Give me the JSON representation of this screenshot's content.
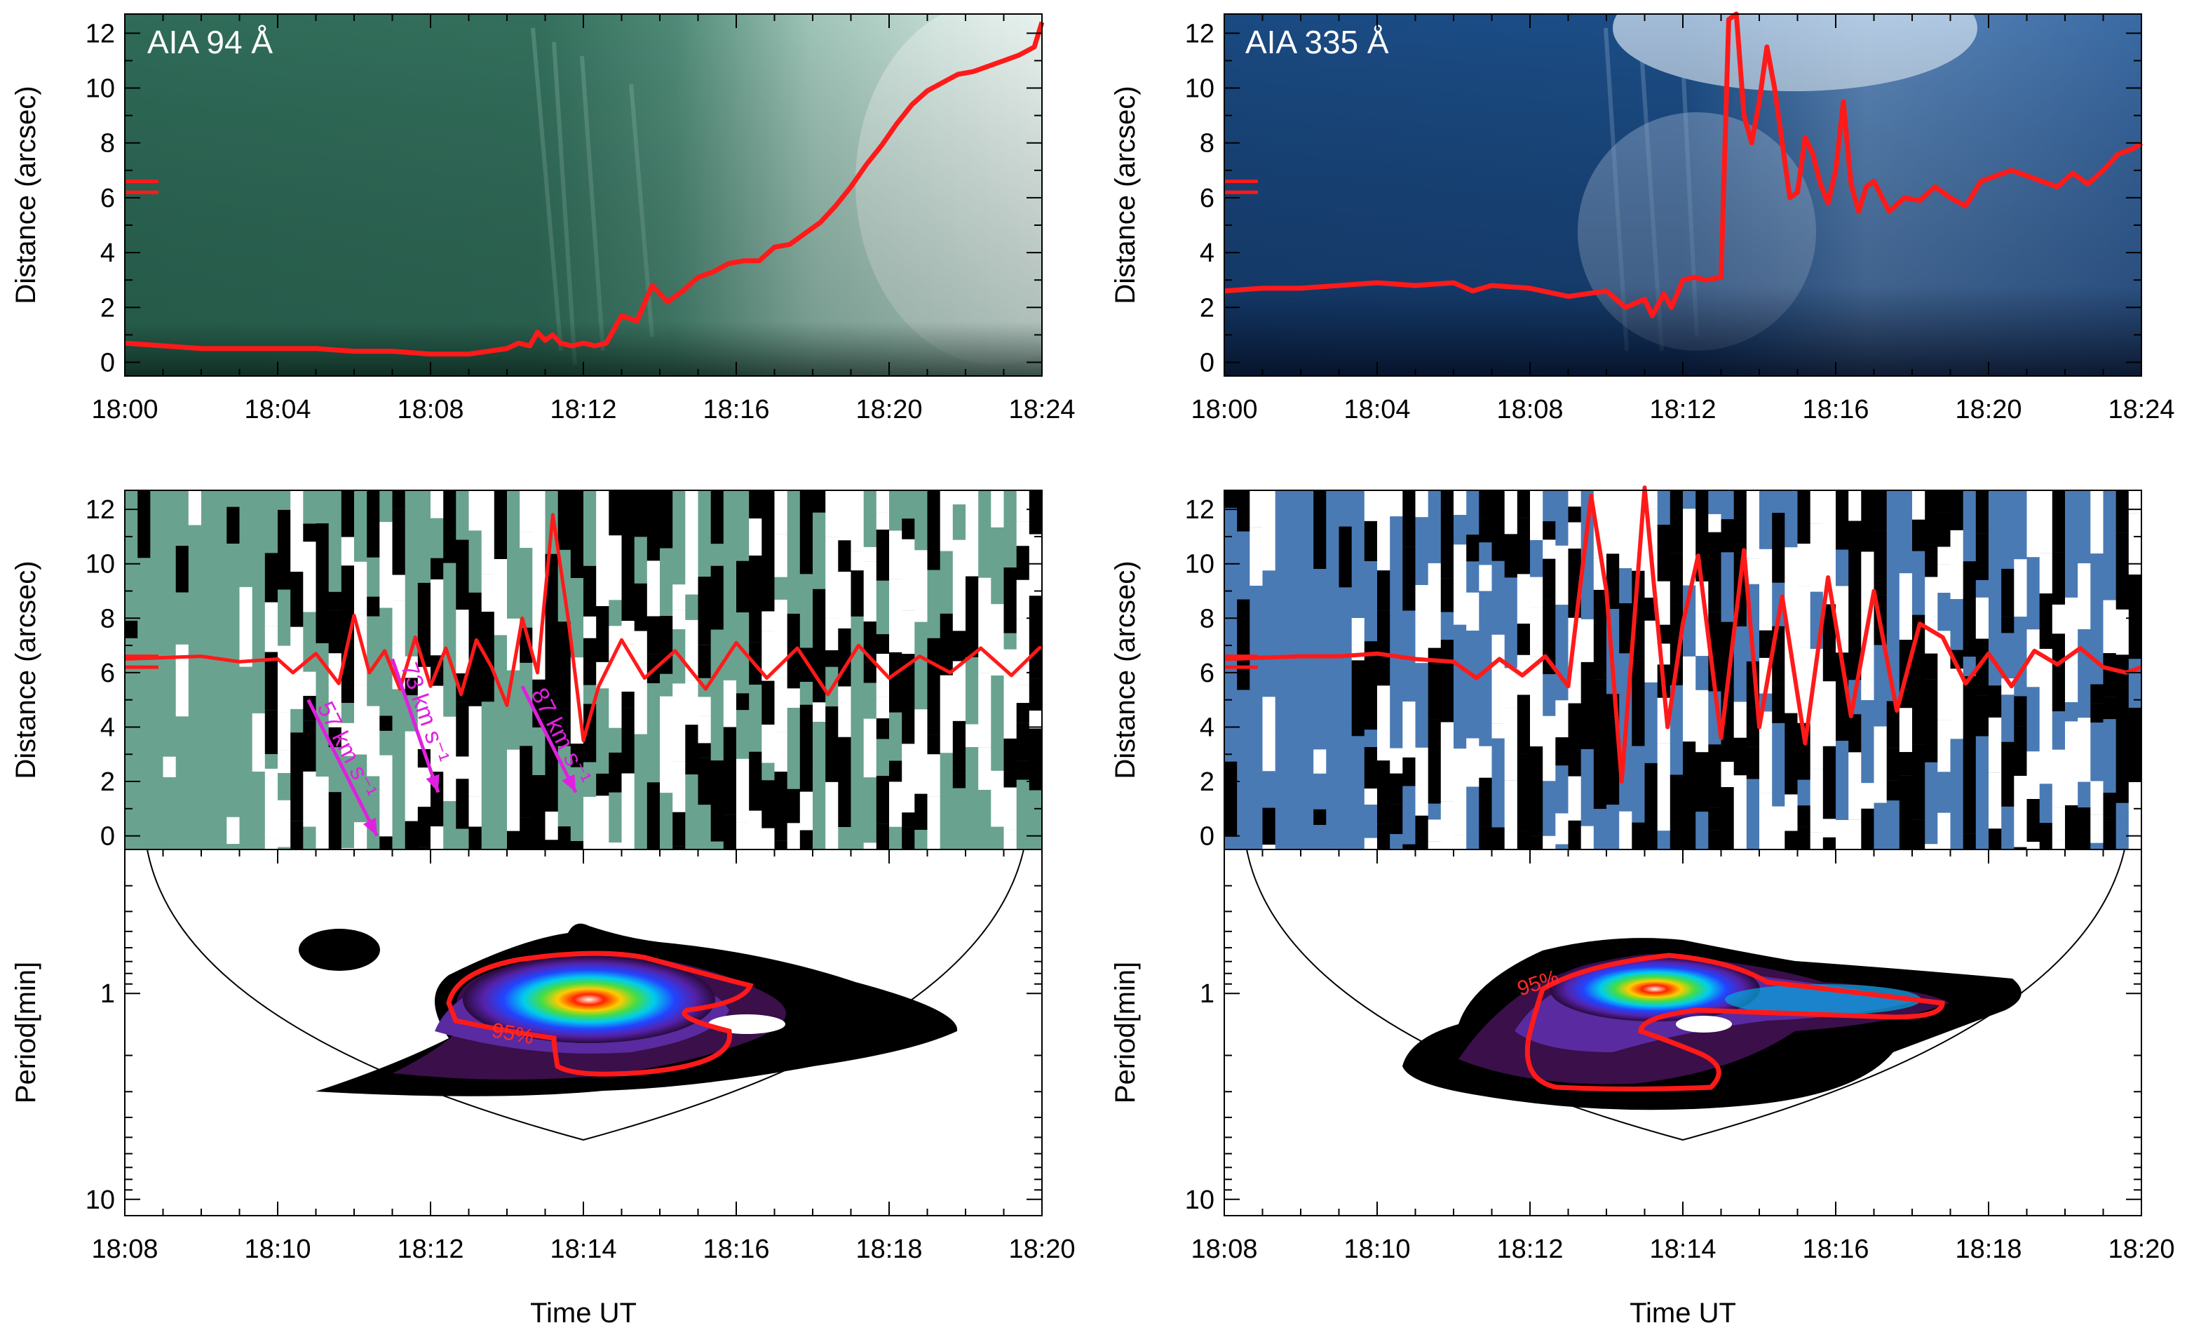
{
  "colors": {
    "aia94_base": "#2f6e5a",
    "aia335_base": "#1d4f86",
    "trace": "#ff1a1a",
    "speed_arrow": "#e020e0",
    "axis": "#000000"
  },
  "chart_data": [
    {
      "id": "ts94",
      "type": "line",
      "title": "AIA 94 Å",
      "xlabel": "",
      "ylabel": "Distance (arcsec)",
      "xticks": [
        "18:00",
        "18:04",
        "18:08",
        "18:12",
        "18:16",
        "18:20",
        "18:24"
      ],
      "xlim": [
        0,
        24
      ],
      "yticks": [
        "0",
        "2",
        "4",
        "6",
        "8",
        "10",
        "12"
      ],
      "ylim": [
        -0.5,
        12.7
      ],
      "x": [
        0,
        1,
        2,
        3,
        4,
        5,
        6,
        7,
        8,
        9,
        9.5,
        10,
        10.3,
        10.6,
        10.8,
        11,
        11.2,
        11.4,
        11.7,
        12,
        12.3,
        12.6,
        13,
        13.4,
        13.8,
        14.2,
        14.6,
        15,
        15.4,
        15.8,
        16.2,
        16.6,
        17,
        17.4,
        17.8,
        18.2,
        18.6,
        19,
        19.4,
        19.8,
        20.2,
        20.6,
        21,
        21.4,
        21.8,
        22.2,
        22.6,
        23,
        23.4,
        23.8,
        24
      ],
      "values": [
        0.7,
        0.6,
        0.5,
        0.5,
        0.5,
        0.5,
        0.4,
        0.4,
        0.3,
        0.3,
        0.4,
        0.5,
        0.7,
        0.6,
        1.1,
        0.8,
        1.0,
        0.7,
        0.6,
        0.7,
        0.6,
        0.7,
        1.7,
        1.5,
        2.8,
        2.2,
        2.6,
        3.1,
        3.3,
        3.6,
        3.7,
        3.7,
        4.2,
        4.3,
        4.7,
        5.1,
        5.7,
        6.4,
        7.2,
        7.9,
        8.7,
        9.4,
        9.9,
        10.2,
        10.5,
        10.6,
        10.8,
        11.0,
        11.2,
        11.5,
        12.4
      ],
      "markers": [
        6.2,
        6.6
      ]
    },
    {
      "id": "ts335",
      "type": "line",
      "title": "AIA 335 Å",
      "xlabel": "",
      "ylabel": "Distance (arcsec)",
      "xticks": [
        "18:00",
        "18:04",
        "18:08",
        "18:12",
        "18:16",
        "18:20",
        "18:24"
      ],
      "xlim": [
        0,
        24
      ],
      "yticks": [
        "0",
        "2",
        "4",
        "6",
        "8",
        "10",
        "12"
      ],
      "ylim": [
        -0.5,
        12.7
      ],
      "x": [
        0,
        1,
        2,
        3,
        4,
        5,
        6,
        6.5,
        7,
        8,
        9,
        10,
        10.5,
        11,
        11.2,
        11.5,
        11.7,
        12,
        12.3,
        12.6,
        13,
        13.2,
        13.4,
        13.6,
        13.8,
        14,
        14.2,
        14.4,
        14.6,
        14.8,
        15,
        15.2,
        15.4,
        15.6,
        15.8,
        16,
        16.2,
        16.4,
        16.6,
        16.8,
        17,
        17.4,
        17.8,
        18.2,
        18.6,
        19,
        19.4,
        19.8,
        20.2,
        20.6,
        21,
        21.4,
        21.8,
        22.2,
        22.6,
        23,
        23.4,
        23.8,
        24
      ],
      "values": [
        2.6,
        2.7,
        2.7,
        2.8,
        2.9,
        2.8,
        2.9,
        2.6,
        2.8,
        2.7,
        2.4,
        2.6,
        2.0,
        2.3,
        1.7,
        2.5,
        2.0,
        3.0,
        3.1,
        3.0,
        3.1,
        12.5,
        12.7,
        9.0,
        8.0,
        9.5,
        11.5,
        10.0,
        8.0,
        6.0,
        6.2,
        8.2,
        7.6,
        6.5,
        5.8,
        7.0,
        9.5,
        6.5,
        5.5,
        6.4,
        6.6,
        5.5,
        6.0,
        5.9,
        6.4,
        6.0,
        5.7,
        6.6,
        6.8,
        7.0,
        6.8,
        6.6,
        6.4,
        6.9,
        6.5,
        7.0,
        7.6,
        7.8,
        8.0
      ],
      "markers": [
        6.2,
        6.6
      ]
    },
    {
      "id": "diff94",
      "type": "line",
      "title": "",
      "xlabel": "",
      "ylabel": "Distance (arcsec)",
      "xlim": [
        0,
        12
      ],
      "yticks": [
        "0",
        "2",
        "4",
        "6",
        "8",
        "10",
        "12"
      ],
      "ylim": [
        -0.5,
        12.7
      ],
      "x": [
        0,
        1,
        1.5,
        2,
        2.2,
        2.5,
        2.8,
        3.0,
        3.2,
        3.4,
        3.6,
        3.8,
        4.0,
        4.2,
        4.4,
        4.6,
        4.8,
        5.0,
        5.2,
        5.4,
        5.6,
        5.8,
        6.0,
        6.2,
        6.5,
        6.8,
        7.2,
        7.6,
        8.0,
        8.4,
        8.8,
        9.2,
        9.6,
        10.0,
        10.4,
        10.8,
        11.2,
        11.6,
        12.0
      ],
      "values": [
        6.5,
        6.6,
        6.4,
        6.5,
        6.0,
        6.7,
        5.6,
        8.1,
        6.0,
        6.8,
        5.4,
        7.3,
        5.5,
        6.9,
        5.2,
        7.2,
        6.2,
        4.8,
        8.0,
        6.0,
        11.8,
        8.0,
        3.5,
        5.5,
        7.2,
        5.8,
        6.8,
        5.4,
        7.1,
        5.8,
        6.9,
        5.2,
        7.0,
        5.8,
        6.6,
        6.0,
        6.9,
        5.9,
        7.0
      ],
      "markers": [
        6.2,
        6.6
      ],
      "speeds": [
        {
          "label": "57 km s⁻¹",
          "x0": 2.4,
          "y0": 5.0,
          "x1": 3.3,
          "y1": 0.0
        },
        {
          "label": "73 km s⁻¹",
          "x0": 3.5,
          "y0": 6.5,
          "x1": 4.1,
          "y1": 1.6
        },
        {
          "label": "87 km s⁻¹",
          "x0": 5.2,
          "y0": 5.5,
          "x1": 5.9,
          "y1": 1.6
        }
      ]
    },
    {
      "id": "diff335",
      "type": "line",
      "title": "",
      "xlabel": "",
      "ylabel": "Distance (arcsec)",
      "xlim": [
        0,
        12
      ],
      "yticks": [
        "0",
        "2",
        "4",
        "6",
        "8",
        "10",
        "12"
      ],
      "ylim": [
        -0.5,
        12.7
      ],
      "x": [
        0,
        1,
        1.5,
        2,
        2.5,
        3.0,
        3.3,
        3.6,
        3.9,
        4.2,
        4.5,
        4.8,
        5.0,
        5.2,
        5.5,
        5.8,
        6.0,
        6.2,
        6.5,
        6.8,
        7.0,
        7.3,
        7.6,
        7.9,
        8.2,
        8.5,
        8.8,
        9.1,
        9.4,
        9.7,
        10.0,
        10.3,
        10.6,
        10.9,
        11.2,
        11.5,
        11.8,
        12.0
      ],
      "values": [
        6.5,
        6.6,
        6.6,
        6.7,
        6.5,
        6.4,
        5.8,
        6.5,
        5.9,
        6.6,
        5.5,
        12.5,
        9.0,
        2.0,
        12.8,
        4.0,
        7.8,
        10.3,
        3.6,
        10.5,
        4.0,
        8.8,
        3.4,
        9.5,
        4.4,
        9.0,
        4.6,
        7.8,
        7.3,
        5.6,
        6.7,
        5.5,
        6.8,
        6.3,
        6.9,
        6.2,
        6.0,
        6.2
      ],
      "markers": [
        6.2,
        6.6
      ]
    },
    {
      "id": "wav94",
      "type": "heatmap",
      "title": "",
      "xlabel": "Time UT",
      "ylabel": "Period[min]",
      "xticks": [
        "18:08",
        "18:10",
        "18:12",
        "18:14",
        "18:16",
        "18:18",
        "18:20"
      ],
      "xlim": [
        0,
        12
      ],
      "yticks": [
        "1",
        "10"
      ],
      "ylim_log": [
        0.2,
        12
      ],
      "significance_label": "95%",
      "peak": {
        "x": 6.0,
        "period": 0.97
      }
    },
    {
      "id": "wav335",
      "type": "heatmap",
      "title": "",
      "xlabel": "Time UT",
      "ylabel": "Period[min]",
      "xticks": [
        "18:08",
        "18:10",
        "18:12",
        "18:14",
        "18:16",
        "18:18",
        "18:20"
      ],
      "xlim": [
        0,
        12
      ],
      "yticks": [
        "1",
        "10"
      ],
      "ylim_log": [
        0.2,
        12
      ],
      "significance_label": "95%",
      "peak": {
        "x": 5.5,
        "period": 0.92
      }
    }
  ]
}
